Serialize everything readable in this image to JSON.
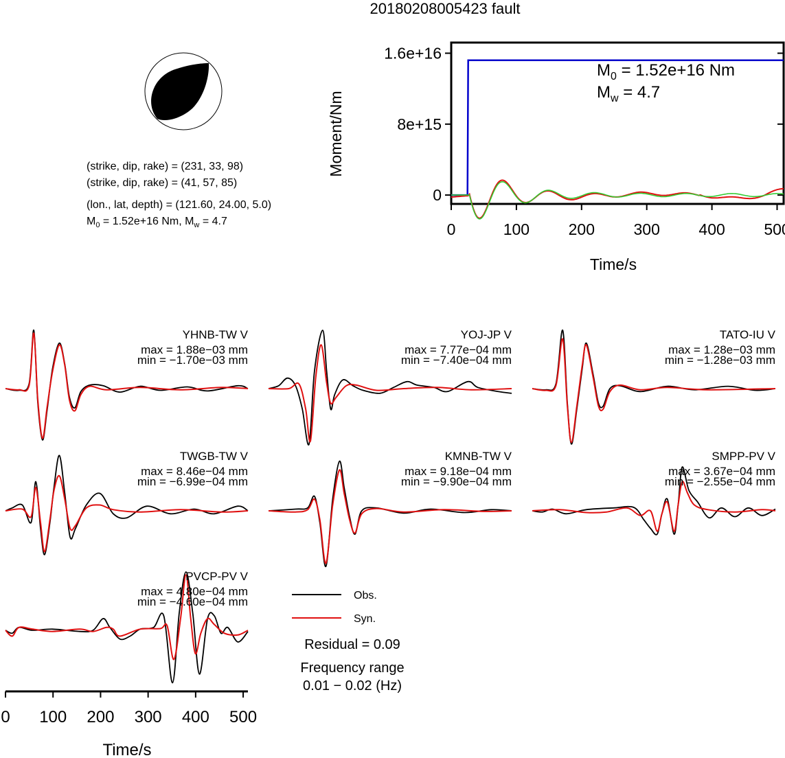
{
  "title": "20180208005423 fault",
  "mechanism": {
    "plane1": "(strike, dip, rake) = (231, 33, 98)",
    "plane2": "(strike, dip, rake) = (41, 57, 85)",
    "location": "(lon., lat, depth) = (121.60, 24.00, 5.0)",
    "m0_prefix": "M",
    "m0_sub": "0",
    "m0_mid": " = 1.52e+16 Nm, M",
    "mw_sub": "w",
    "mw_val": " = 4.7"
  },
  "colors": {
    "obs": "#000000",
    "syn": "#e01010",
    "moment": "#0000cc",
    "stf": "#33cc33"
  },
  "moment_chart": {
    "type": "line",
    "ylabel": "Moment/Nm",
    "xlabel": "Time/s",
    "xlim": [
      0,
      510
    ],
    "ylim": [
      -1000000000000000.0,
      1.72e+16
    ],
    "xticks": [
      "0",
      "100",
      "200",
      "300",
      "400",
      "500"
    ],
    "yticks": [
      "0",
      "8e+15",
      "1.6e+16"
    ],
    "annotation_m0": {
      "prefix": "M",
      "sub": "0",
      "text": " = 1.52e+16 Nm"
    },
    "annotation_mw": {
      "prefix": "M",
      "sub": "w",
      "text": " = 4.7"
    },
    "series": [
      {
        "name": "moment",
        "x": [
          0,
          25,
          26,
          510
        ],
        "y": [
          0,
          0,
          1.52e+16,
          1.52e+16
        ]
      }
    ]
  },
  "chart_data": [
    {
      "type": "line",
      "title": "20180208005423 fault",
      "xlabel": "Time/s",
      "ylabel": "Moment/Nm",
      "xlim": [
        0,
        510
      ],
      "ylim": [
        -1000000000000000.0,
        1.72e+16
      ],
      "series": [
        {
          "x": [
            0,
            25,
            26,
            510
          ],
          "y": [
            0,
            0,
            1.52e+16,
            1.52e+16
          ]
        }
      ]
    },
    {
      "type": "line",
      "xlabel": "Time/s",
      "xlim": [
        0,
        510
      ],
      "stations": [
        {
          "name": "YHNB-TW V",
          "max": "max = 1.88e-03 mm",
          "min": "min = -1.70e-03 mm"
        },
        {
          "name": "YOJ-JP V",
          "max": "max = 7.77e-04 mm",
          "min": "min = -7.40e-04 mm"
        },
        {
          "name": "TATO-IU V",
          "max": "max = 1.28e-03 mm",
          "min": "min = -1.28e-03 mm"
        },
        {
          "name": "TWGB-TW V",
          "max": "max = 8.46e-04 mm",
          "min": "min = -6.99e-04 mm"
        },
        {
          "name": "KMNB-TW V",
          "max": "max = 9.18e-04 mm",
          "min": "min = -9.90e-04 mm"
        },
        {
          "name": "SMPP-PV V",
          "max": "max = 3.67e-04 mm",
          "min": "min = -2.55e-04 mm"
        },
        {
          "name": "PVCP-PV V",
          "max": "max = 4.80e-04 mm",
          "min": "min = -4.60e-04 mm"
        }
      ]
    }
  ],
  "waveform_axis": {
    "xlabel": "Time/s",
    "xlim": [
      0,
      510
    ],
    "xticks": [
      "0",
      "100",
      "200",
      "300",
      "400",
      "500"
    ]
  },
  "legend": {
    "obs": "Obs.",
    "syn": "Syn."
  },
  "residual": "Residual = 0.09",
  "frequency_label": "Frequency range",
  "frequency_value": "0.01 − 0.02 (Hz)",
  "waveforms": [
    {
      "name": "YHNB-TW V",
      "max": "max = 1.88e−03 mm",
      "min": "min = −1.70e−03 mm",
      "syn": [
        [
          0,
          0
        ],
        [
          20,
          -0.02
        ],
        [
          35,
          0.05
        ],
        [
          42,
          0.95
        ],
        [
          48,
          -0.2
        ],
        [
          55,
          -0.85
        ],
        [
          62,
          -0.3
        ],
        [
          70,
          0.3
        ],
        [
          80,
          0.75
        ],
        [
          88,
          0.4
        ],
        [
          95,
          -0.2
        ],
        [
          103,
          -0.38
        ],
        [
          112,
          -0.1
        ],
        [
          125,
          0.04
        ],
        [
          150,
          -0.02
        ],
        [
          200,
          0.02
        ],
        [
          260,
          -0.02
        ],
        [
          320,
          0.02
        ],
        [
          360,
          0
        ]
      ],
      "obs": [
        [
          0,
          0
        ],
        [
          20,
          -0.03
        ],
        [
          35,
          0.08
        ],
        [
          42,
          1.0
        ],
        [
          48,
          -0.25
        ],
        [
          55,
          -0.88
        ],
        [
          62,
          -0.35
        ],
        [
          70,
          0.35
        ],
        [
          80,
          0.78
        ],
        [
          88,
          0.42
        ],
        [
          95,
          -0.15
        ],
        [
          103,
          -0.33
        ],
        [
          112,
          -0.05
        ],
        [
          125,
          0.06
        ],
        [
          145,
          0.05
        ],
        [
          170,
          -0.06
        ],
        [
          200,
          0.04
        ],
        [
          230,
          -0.03
        ],
        [
          270,
          0.03
        ],
        [
          300,
          -0.04
        ],
        [
          345,
          0.05
        ],
        [
          360,
          0
        ]
      ]
    },
    {
      "name": "YOJ-JP V",
      "max": "max = 7.77e−04 mm",
      "min": "min = −7.40e−04 mm",
      "syn": [
        [
          0,
          0
        ],
        [
          30,
          0
        ],
        [
          45,
          0.08
        ],
        [
          55,
          -0.35
        ],
        [
          62,
          -0.9
        ],
        [
          70,
          0.2
        ],
        [
          78,
          0.75
        ],
        [
          86,
          0.1
        ],
        [
          92,
          -0.25
        ],
        [
          100,
          -0.15
        ],
        [
          115,
          0.05
        ],
        [
          130,
          0.06
        ],
        [
          160,
          -0.03
        ],
        [
          200,
          0
        ],
        [
          250,
          0.02
        ],
        [
          300,
          -0.02
        ],
        [
          360,
          0
        ]
      ],
      "obs": [
        [
          0,
          0
        ],
        [
          15,
          0.05
        ],
        [
          28,
          0.18
        ],
        [
          40,
          0.05
        ],
        [
          50,
          -0.35
        ],
        [
          60,
          -0.95
        ],
        [
          68,
          0.3
        ],
        [
          80,
          1.0
        ],
        [
          86,
          0.3
        ],
        [
          92,
          -0.35
        ],
        [
          98,
          -0.1
        ],
        [
          110,
          0.15
        ],
        [
          125,
          0.05
        ],
        [
          140,
          -0.03
        ],
        [
          165,
          -0.08
        ],
        [
          185,
          0.02
        ],
        [
          205,
          0.12
        ],
        [
          220,
          0.06
        ],
        [
          245,
          0.02
        ],
        [
          265,
          -0.05
        ],
        [
          295,
          0.12
        ],
        [
          310,
          0.02
        ],
        [
          340,
          -0.05
        ],
        [
          360,
          -0.08
        ]
      ]
    },
    {
      "name": "TATO-IU V",
      "max": "max = 1.28e−03 mm",
      "min": "min = −1.28e−03 mm",
      "syn": [
        [
          0,
          0
        ],
        [
          20,
          -0.03
        ],
        [
          35,
          0.05
        ],
        [
          45,
          0.85
        ],
        [
          52,
          -0.3
        ],
        [
          58,
          -0.92
        ],
        [
          66,
          -0.3
        ],
        [
          74,
          0.4
        ],
        [
          80,
          0.75
        ],
        [
          90,
          0.2
        ],
        [
          98,
          -0.3
        ],
        [
          105,
          -0.35
        ],
        [
          115,
          -0.05
        ],
        [
          130,
          0.06
        ],
        [
          160,
          -0.02
        ],
        [
          200,
          0.02
        ],
        [
          260,
          -0.02
        ],
        [
          360,
          0
        ]
      ],
      "obs": [
        [
          0,
          0
        ],
        [
          20,
          -0.02
        ],
        [
          35,
          0.08
        ],
        [
          45,
          1.0
        ],
        [
          52,
          -0.25
        ],
        [
          58,
          -0.95
        ],
        [
          66,
          -0.35
        ],
        [
          74,
          0.35
        ],
        [
          80,
          0.78
        ],
        [
          90,
          0.25
        ],
        [
          98,
          -0.25
        ],
        [
          105,
          -0.3
        ],
        [
          115,
          0.0
        ],
        [
          130,
          0.05
        ],
        [
          160,
          -0.05
        ],
        [
          200,
          0.04
        ],
        [
          240,
          -0.02
        ],
        [
          290,
          0.04
        ],
        [
          330,
          -0.03
        ],
        [
          360,
          0
        ]
      ]
    },
    {
      "name": "TWGB-TW V",
      "max": "max = 8.46e−04 mm",
      "min": "min = −6.99e−04 mm",
      "syn": [
        [
          0,
          0
        ],
        [
          25,
          0.03
        ],
        [
          38,
          -0.1
        ],
        [
          45,
          0.4
        ],
        [
          52,
          -0.2
        ],
        [
          58,
          -0.7
        ],
        [
          66,
          -0.15
        ],
        [
          72,
          0.35
        ],
        [
          80,
          0.6
        ],
        [
          88,
          0.2
        ],
        [
          96,
          -0.3
        ],
        [
          104,
          -0.25
        ],
        [
          120,
          0.05
        ],
        [
          140,
          0.1
        ],
        [
          160,
          0.02
        ],
        [
          200,
          -0.02
        ],
        [
          260,
          0.02
        ],
        [
          320,
          -0.02
        ],
        [
          360,
          0
        ]
      ],
      "obs": [
        [
          0,
          0
        ],
        [
          10,
          0.05
        ],
        [
          25,
          0.1
        ],
        [
          38,
          -0.2
        ],
        [
          45,
          0.5
        ],
        [
          52,
          -0.3
        ],
        [
          58,
          -0.75
        ],
        [
          66,
          -0.2
        ],
        [
          72,
          0.4
        ],
        [
          80,
          0.95
        ],
        [
          88,
          0.3
        ],
        [
          96,
          -0.45
        ],
        [
          104,
          -0.3
        ],
        [
          120,
          0.1
        ],
        [
          140,
          0.3
        ],
        [
          160,
          -0.05
        ],
        [
          180,
          -0.12
        ],
        [
          210,
          0.08
        ],
        [
          245,
          -0.05
        ],
        [
          280,
          0.03
        ],
        [
          310,
          -0.05
        ],
        [
          345,
          0.08
        ],
        [
          360,
          0
        ]
      ]
    },
    {
      "name": "KMNB-TW V",
      "max": "max = 9.18e−04 mm",
      "min": "min = −9.90e−04 mm",
      "syn": [
        [
          0,
          0
        ],
        [
          40,
          -0.02
        ],
        [
          58,
          0.02
        ],
        [
          68,
          0.2
        ],
        [
          76,
          -0.15
        ],
        [
          85,
          -0.9
        ],
        [
          95,
          0.1
        ],
        [
          105,
          0.7
        ],
        [
          112,
          0.3
        ],
        [
          120,
          -0.15
        ],
        [
          128,
          -0.38
        ],
        [
          138,
          -0.05
        ],
        [
          160,
          0.04
        ],
        [
          200,
          -0.02
        ],
        [
          260,
          0.02
        ],
        [
          320,
          -0.01
        ],
        [
          360,
          0
        ]
      ],
      "obs": [
        [
          0,
          0
        ],
        [
          40,
          0.03
        ],
        [
          58,
          0.05
        ],
        [
          68,
          0.25
        ],
        [
          76,
          -0.2
        ],
        [
          85,
          -0.95
        ],
        [
          95,
          0.2
        ],
        [
          105,
          0.85
        ],
        [
          112,
          0.4
        ],
        [
          120,
          -0.1
        ],
        [
          128,
          -0.4
        ],
        [
          138,
          0.0
        ],
        [
          160,
          0.05
        ],
        [
          200,
          -0.04
        ],
        [
          240,
          0.03
        ],
        [
          290,
          -0.03
        ],
        [
          330,
          0.02
        ],
        [
          360,
          0
        ]
      ]
    },
    {
      "name": "SMPP-PV V",
      "max": "max = 3.67e−04 mm",
      "min": "min = −2.55e−04 mm",
      "syn": [
        [
          0,
          0
        ],
        [
          40,
          0.02
        ],
        [
          80,
          -0.03
        ],
        [
          110,
          -0.02
        ],
        [
          140,
          0.05
        ],
        [
          160,
          -0.08
        ],
        [
          175,
          0.0
        ],
        [
          185,
          -0.35
        ],
        [
          192,
          -0.05
        ],
        [
          200,
          0.15
        ],
        [
          210,
          -0.35
        ],
        [
          216,
          0.1
        ],
        [
          222,
          0.5
        ],
        [
          230,
          0.3
        ],
        [
          240,
          0.1
        ],
        [
          260,
          0.02
        ],
        [
          300,
          -0.02
        ],
        [
          340,
          0.02
        ],
        [
          360,
          0
        ]
      ],
      "obs": [
        [
          0,
          0
        ],
        [
          15,
          -0.02
        ],
        [
          30,
          0.03
        ],
        [
          50,
          -0.05
        ],
        [
          80,
          0.02
        ],
        [
          120,
          0.05
        ],
        [
          150,
          0.06
        ],
        [
          165,
          -0.15
        ],
        [
          175,
          -0.3
        ],
        [
          185,
          -0.4
        ],
        [
          192,
          -0.05
        ],
        [
          200,
          0.2
        ],
        [
          210,
          -0.4
        ],
        [
          216,
          0.1
        ],
        [
          222,
          0.75
        ],
        [
          232,
          0.35
        ],
        [
          245,
          0.15
        ],
        [
          262,
          -0.12
        ],
        [
          280,
          0.05
        ],
        [
          300,
          -0.1
        ],
        [
          320,
          0.05
        ],
        [
          340,
          -0.08
        ],
        [
          360,
          0.03
        ]
      ]
    },
    {
      "name": "PVCP-PV V",
      "max": "max = 4.80e−04 mm",
      "min": "min = −4.60e−04 mm",
      "syn": [
        [
          0,
          0
        ],
        [
          10,
          -0.1
        ],
        [
          20,
          0.05
        ],
        [
          40,
          0.02
        ],
        [
          70,
          -0.02
        ],
        [
          110,
          0.02
        ],
        [
          130,
          -0.02
        ],
        [
          150,
          0.05
        ],
        [
          160,
          0.02
        ],
        [
          170,
          -0.1
        ],
        [
          200,
          0.02
        ],
        [
          230,
          0.03
        ],
        [
          240,
          0.08
        ],
        [
          250,
          -0.5
        ],
        [
          260,
          0.2
        ],
        [
          268,
          0.95
        ],
        [
          275,
          0.2
        ],
        [
          282,
          -0.4
        ],
        [
          290,
          -0.05
        ],
        [
          300,
          0.2
        ],
        [
          310,
          0.1
        ],
        [
          325,
          -0.05
        ],
        [
          345,
          -0.08
        ],
        [
          360,
          0
        ]
      ],
      "obs": [
        [
          0,
          0
        ],
        [
          10,
          -0.05
        ],
        [
          20,
          0.05
        ],
        [
          40,
          0.0
        ],
        [
          70,
          0.02
        ],
        [
          110,
          -0.02
        ],
        [
          130,
          0.0
        ],
        [
          145,
          0.2
        ],
        [
          155,
          0.05
        ],
        [
          170,
          -0.15
        ],
        [
          185,
          -0.1
        ],
        [
          200,
          0.02
        ],
        [
          220,
          0.05
        ],
        [
          235,
          0.25
        ],
        [
          248,
          -0.9
        ],
        [
          258,
          0.3
        ],
        [
          268,
          1.0
        ],
        [
          278,
          0.3
        ],
        [
          288,
          -0.75
        ],
        [
          300,
          0.2
        ],
        [
          310,
          0.25
        ],
        [
          320,
          -0.05
        ],
        [
          330,
          0.05
        ],
        [
          345,
          -0.2
        ],
        [
          360,
          -0.02
        ]
      ]
    }
  ]
}
